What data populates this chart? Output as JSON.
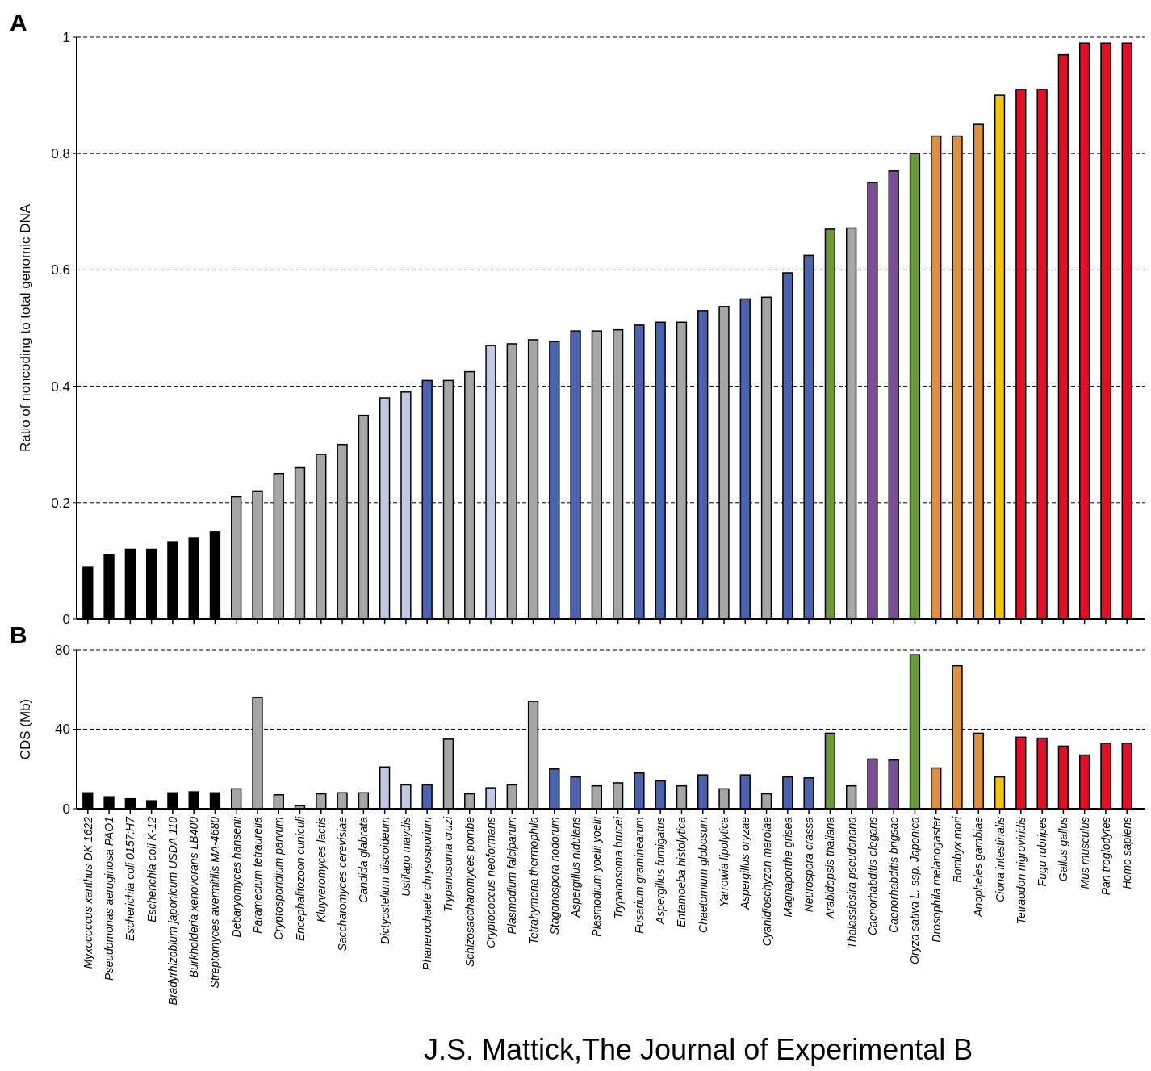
{
  "chart_data": [
    {
      "type": "bar",
      "title": "A",
      "ylabel": "Ratio of noncoding to total genomic DNA",
      "tick_labels": "y",
      "grid": "y",
      "ylim": [
        0,
        1
      ],
      "yticks": [
        0,
        0.2,
        0.4,
        0.6,
        0.8,
        1
      ],
      "categories": [
        null,
        null,
        null,
        null,
        null,
        null,
        null,
        null,
        null,
        null,
        null,
        null,
        null,
        null,
        null,
        null,
        null,
        null,
        null,
        null,
        null,
        null,
        null,
        null,
        null,
        null,
        null,
        null,
        null,
        null,
        null,
        null,
        null,
        null,
        null,
        null,
        null,
        null,
        null,
        null,
        null,
        null,
        null,
        null,
        null,
        null,
        null,
        null,
        null,
        null
      ],
      "values": [
        0.09,
        0.11,
        0.12,
        0.12,
        0.133,
        0.14,
        0.15,
        0.21,
        0.22,
        0.25,
        0.26,
        0.283,
        0.3,
        0.35,
        0.38,
        0.39,
        0.41,
        0.41,
        0.425,
        0.47,
        0.473,
        0.48,
        0.477,
        0.495,
        0.495,
        0.497,
        0.505,
        0.51,
        0.51,
        0.53,
        0.537,
        0.55,
        0.553,
        0.595,
        0.625,
        0.67,
        0.672,
        0.75,
        0.77,
        0.8,
        0.83,
        0.83,
        0.85,
        0.9,
        0.91,
        0.91,
        0.97,
        0.99,
        0.99,
        0.99
      ],
      "colors": [
        "#000000",
        "#000000",
        "#000000",
        "#000000",
        "#000000",
        "#000000",
        "#000000",
        "#a6a6a6",
        "#a6a6a6",
        "#a6a6a6",
        "#a6a6a6",
        "#a6a6a6",
        "#a6a6a6",
        "#a6a6a6",
        "#c0c8e6",
        "#c0c8e6",
        "#4a62b0",
        "#a6a6a6",
        "#a6a6a6",
        "#c0c8e6",
        "#a6a6a6",
        "#a6a6a6",
        "#4a62b0",
        "#4a62b0",
        "#a6a6a6",
        "#a6a6a6",
        "#4a62b0",
        "#4a62b0",
        "#a6a6a6",
        "#4a62b0",
        "#a6a6a6",
        "#4a62b0",
        "#a6a6a6",
        "#4a62b0",
        "#4a62b0",
        "#6a9a3a",
        "#a6a6a6",
        "#7a4e94",
        "#7a4e94",
        "#6a9a3a",
        "#e0903a",
        "#e0903a",
        "#e0903a",
        "#f5c400",
        "#e0102a",
        "#e0102a",
        "#e0102a",
        "#e0102a",
        "#e0102a",
        "#e0102a"
      ]
    },
    {
      "type": "bar",
      "title": "B",
      "ylabel": "CDS (Mb)",
      "grid": "y",
      "ylim": [
        0,
        80
      ],
      "yticks": [
        0,
        40,
        80
      ],
      "annotations": [
        "J.S. Mattick,The Journal of Experimental B"
      ],
      "categories": [
        "Myxococcus xanthus DK 1622",
        "Pseudomonas aeruginosa PAO1",
        "Escherichia coli 0157:H7",
        "Escherichia coli K-12",
        "Bradyrhizobium japonicum USDA 110",
        "Burkholderia xenovorans LB400",
        "Streptomyces avermitilis MA-4680",
        "Debaryomyces hansenii",
        "Paramecium tetraurelia",
        "Cryptosporidium parvum",
        "Encephalitozoon cuniculi",
        "Kluyveromyces lactis",
        "Saccharomyces cerevisiae",
        "Candida glabrata",
        "Dictyostelium discoideum",
        "Ustilago maydis",
        "Phanerochaete chrysosporium",
        "Trypanosoma cruzi",
        "Schizosaccharomyces pombe",
        "Cryptococcus neoformans",
        "Plasmodium falciparum",
        "Tetrahymena thermophila",
        "Stagonospora nodorum",
        "Aspergillus nidulans",
        "Plasmodium yoelii yoelii",
        "Trypanosoma brucei",
        "Fusarium graminearum",
        "Aspergillus fumigatus",
        "Entamoeba histolytica",
        "Chaetomium globosum",
        "Yarrowia lipolytica",
        "Aspergillus oryzae",
        "Cyanidioschyzon merolae",
        "Magnaporthe grisea",
        "Neurospora crassa",
        "Arabidopsis thaliana",
        "Thalassiosira pseudonana",
        "Caenorhabditis elegans",
        "Caenorhabditis brigsae",
        "Oryza sativa L. ssp. Japonica",
        "Drosophila melanogaster",
        "Bombyx mori",
        "Anopheles gambiae",
        "Ciona intestinalis",
        "Tetraodon nigroviridis",
        "Fugu rubripes",
        "Gallus gallus",
        "Mus musculus",
        "Pan troglodytes",
        "Homo sapiens"
      ],
      "values": [
        8,
        6,
        5,
        4,
        8,
        8.5,
        8,
        10,
        56,
        7,
        1.5,
        7.5,
        8,
        8,
        21,
        12,
        12,
        35,
        7.5,
        10.5,
        12,
        54,
        20,
        16,
        11.5,
        13,
        18,
        14,
        11.5,
        17,
        10,
        17,
        7.5,
        16,
        15.5,
        38,
        11.5,
        25,
        24.5,
        77.5,
        20.5,
        72,
        38,
        16,
        36,
        35.5,
        31.5,
        27,
        33,
        33
      ],
      "colors": [
        "#000000",
        "#000000",
        "#000000",
        "#000000",
        "#000000",
        "#000000",
        "#000000",
        "#a6a6a6",
        "#a6a6a6",
        "#a6a6a6",
        "#a6a6a6",
        "#a6a6a6",
        "#a6a6a6",
        "#a6a6a6",
        "#c0c8e6",
        "#c0c8e6",
        "#4a62b0",
        "#a6a6a6",
        "#a6a6a6",
        "#c0c8e6",
        "#a6a6a6",
        "#a6a6a6",
        "#4a62b0",
        "#4a62b0",
        "#a6a6a6",
        "#a6a6a6",
        "#4a62b0",
        "#4a62b0",
        "#a6a6a6",
        "#4a62b0",
        "#a6a6a6",
        "#4a62b0",
        "#a6a6a6",
        "#4a62b0",
        "#4a62b0",
        "#6a9a3a",
        "#a6a6a6",
        "#7a4e94",
        "#7a4e94",
        "#6a9a3a",
        "#e0903a",
        "#e0903a",
        "#e0903a",
        "#f5c400",
        "#e0102a",
        "#e0102a",
        "#e0102a",
        "#e0102a",
        "#e0102a",
        "#e0102a"
      ]
    }
  ]
}
